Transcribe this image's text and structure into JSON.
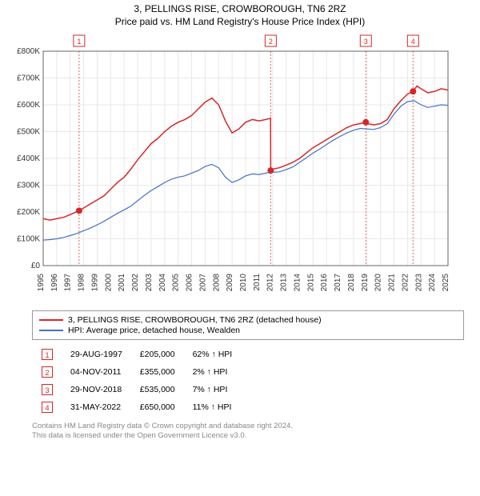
{
  "title_line1": "3, PELLINGS RISE, CROWBOROUGH, TN6 2RZ",
  "title_line2": "Price paid vs. HM Land Registry's House Price Index (HPI)",
  "chart": {
    "type": "line",
    "background_color": "#ffffff",
    "grid_color": "#e8e8e8",
    "axis_color": "#666666",
    "label_fontsize": 10,
    "x_years": [
      1995,
      1996,
      1997,
      1998,
      1999,
      2000,
      2001,
      2002,
      2003,
      2004,
      2005,
      2006,
      2007,
      2008,
      2009,
      2010,
      2011,
      2012,
      2013,
      2014,
      2015,
      2016,
      2017,
      2018,
      2019,
      2020,
      2021,
      2022,
      2023,
      2024,
      2025
    ],
    "xlim": [
      1995,
      2025
    ],
    "ylim": [
      0,
      800000
    ],
    "ytick_step": 100000,
    "ytick_labels": [
      "£0",
      "£100K",
      "£200K",
      "£300K",
      "£400K",
      "£500K",
      "£600K",
      "£700K",
      "£800K"
    ],
    "series": [
      {
        "name": "price_paid",
        "color": "#d62728",
        "line_width": 1.5,
        "points": [
          [
            1995,
            175000
          ],
          [
            1995.5,
            170000
          ],
          [
            1996,
            175000
          ],
          [
            1996.5,
            180000
          ],
          [
            1997,
            190000
          ],
          [
            1997.66,
            205000
          ],
          [
            1998,
            215000
          ],
          [
            1998.5,
            230000
          ],
          [
            1999,
            245000
          ],
          [
            1999.5,
            260000
          ],
          [
            2000,
            285000
          ],
          [
            2000.5,
            310000
          ],
          [
            2001,
            330000
          ],
          [
            2001.5,
            360000
          ],
          [
            2002,
            395000
          ],
          [
            2002.5,
            425000
          ],
          [
            2003,
            455000
          ],
          [
            2003.5,
            475000
          ],
          [
            2004,
            500000
          ],
          [
            2004.5,
            520000
          ],
          [
            2005,
            535000
          ],
          [
            2005.5,
            545000
          ],
          [
            2006,
            560000
          ],
          [
            2006.5,
            585000
          ],
          [
            2007,
            610000
          ],
          [
            2007.5,
            625000
          ],
          [
            2008,
            600000
          ],
          [
            2008.5,
            540000
          ],
          [
            2009,
            495000
          ],
          [
            2009.5,
            510000
          ],
          [
            2010,
            535000
          ],
          [
            2010.5,
            545000
          ],
          [
            2011,
            540000
          ],
          [
            2011.5,
            545000
          ],
          [
            2011.85,
            550000
          ],
          [
            2011.86,
            355000
          ],
          [
            2012,
            360000
          ],
          [
            2012.5,
            365000
          ],
          [
            2013,
            375000
          ],
          [
            2013.5,
            385000
          ],
          [
            2014,
            400000
          ],
          [
            2014.5,
            420000
          ],
          [
            2015,
            440000
          ],
          [
            2015.5,
            455000
          ],
          [
            2016,
            470000
          ],
          [
            2016.5,
            485000
          ],
          [
            2017,
            500000
          ],
          [
            2017.5,
            515000
          ],
          [
            2018,
            525000
          ],
          [
            2018.5,
            530000
          ],
          [
            2018.9,
            535000
          ],
          [
            2019,
            530000
          ],
          [
            2019.5,
            525000
          ],
          [
            2020,
            530000
          ],
          [
            2020.5,
            545000
          ],
          [
            2021,
            585000
          ],
          [
            2021.5,
            615000
          ],
          [
            2022,
            640000
          ],
          [
            2022.4,
            650000
          ],
          [
            2022.7,
            670000
          ],
          [
            2023,
            660000
          ],
          [
            2023.5,
            645000
          ],
          [
            2024,
            650000
          ],
          [
            2024.5,
            660000
          ],
          [
            2025,
            655000
          ]
        ]
      },
      {
        "name": "hpi",
        "color": "#4472c4",
        "line_width": 1.2,
        "points": [
          [
            1995,
            95000
          ],
          [
            1995.5,
            97000
          ],
          [
            1996,
            100000
          ],
          [
            1996.5,
            105000
          ],
          [
            1997,
            112000
          ],
          [
            1997.5,
            120000
          ],
          [
            1998,
            130000
          ],
          [
            1998.5,
            140000
          ],
          [
            1999,
            152000
          ],
          [
            1999.5,
            165000
          ],
          [
            2000,
            180000
          ],
          [
            2000.5,
            195000
          ],
          [
            2001,
            208000
          ],
          [
            2001.5,
            222000
          ],
          [
            2002,
            242000
          ],
          [
            2002.5,
            262000
          ],
          [
            2003,
            280000
          ],
          [
            2003.5,
            295000
          ],
          [
            2004,
            310000
          ],
          [
            2004.5,
            322000
          ],
          [
            2005,
            330000
          ],
          [
            2005.5,
            335000
          ],
          [
            2006,
            345000
          ],
          [
            2006.5,
            355000
          ],
          [
            2007,
            370000
          ],
          [
            2007.5,
            378000
          ],
          [
            2008,
            365000
          ],
          [
            2008.5,
            330000
          ],
          [
            2009,
            310000
          ],
          [
            2009.5,
            320000
          ],
          [
            2010,
            335000
          ],
          [
            2010.5,
            342000
          ],
          [
            2011,
            340000
          ],
          [
            2011.5,
            345000
          ],
          [
            2012,
            348000
          ],
          [
            2012.5,
            350000
          ],
          [
            2013,
            358000
          ],
          [
            2013.5,
            368000
          ],
          [
            2014,
            385000
          ],
          [
            2014.5,
            402000
          ],
          [
            2015,
            420000
          ],
          [
            2015.5,
            435000
          ],
          [
            2016,
            452000
          ],
          [
            2016.5,
            468000
          ],
          [
            2017,
            482000
          ],
          [
            2017.5,
            495000
          ],
          [
            2018,
            505000
          ],
          [
            2018.5,
            512000
          ],
          [
            2019,
            510000
          ],
          [
            2019.5,
            508000
          ],
          [
            2020,
            515000
          ],
          [
            2020.5,
            530000
          ],
          [
            2021,
            565000
          ],
          [
            2021.5,
            595000
          ],
          [
            2022,
            612000
          ],
          [
            2022.5,
            615000
          ],
          [
            2023,
            600000
          ],
          [
            2023.5,
            590000
          ],
          [
            2024,
            595000
          ],
          [
            2024.5,
            600000
          ],
          [
            2025,
            598000
          ]
        ]
      }
    ],
    "markers": [
      {
        "n": "1",
        "year": 1997.66,
        "value": 205000
      },
      {
        "n": "2",
        "year": 2011.86,
        "value": 355000
      },
      {
        "n": "3",
        "year": 2018.91,
        "value": 535000
      },
      {
        "n": "4",
        "year": 2022.41,
        "value": 650000
      }
    ],
    "marker_dot_radius": 4,
    "marker_dot_color": "#d62728"
  },
  "legend": {
    "items": [
      {
        "color": "#d62728",
        "label": "3, PELLINGS RISE, CROWBOROUGH, TN6 2RZ (detached house)"
      },
      {
        "color": "#4472c4",
        "label": "HPI: Average price, detached house, Wealden"
      }
    ]
  },
  "marker_rows": [
    {
      "n": "1",
      "date": "29-AUG-1997",
      "price": "£205,000",
      "pct": "62% ↑ HPI"
    },
    {
      "n": "2",
      "date": "04-NOV-2011",
      "price": "£355,000",
      "pct": "2% ↑ HPI"
    },
    {
      "n": "3",
      "date": "29-NOV-2018",
      "price": "£535,000",
      "pct": "7% ↑ HPI"
    },
    {
      "n": "4",
      "date": "31-MAY-2022",
      "price": "£650,000",
      "pct": "11% ↑ HPI"
    }
  ],
  "footer_line1": "Contains HM Land Registry data © Crown copyright and database right 2024.",
  "footer_line2": "This data is licensed under the Open Government Licence v3.0."
}
